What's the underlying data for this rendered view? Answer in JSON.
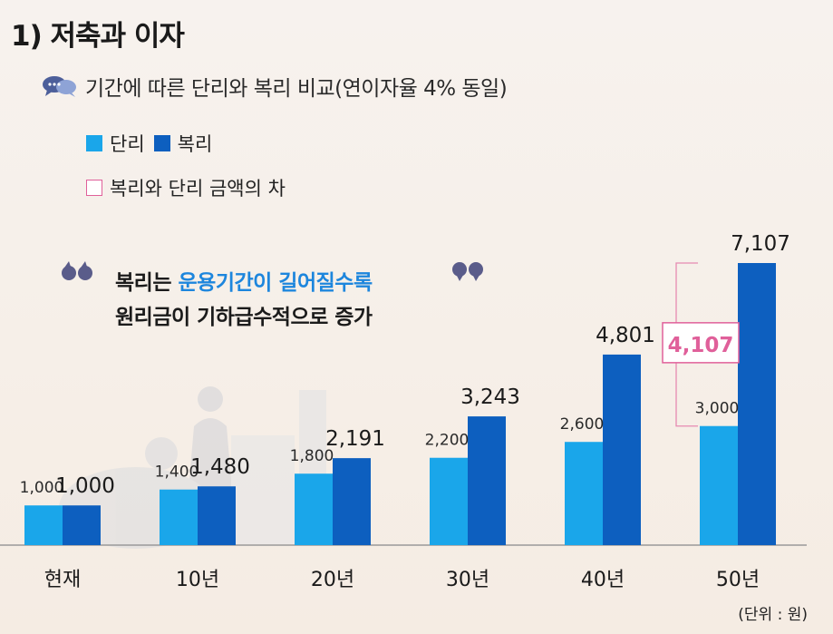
{
  "title": "1) 저축과 이자",
  "subtitle": "기간에 따른 단리와 복리 비교(연이자율 4% 동일)",
  "legend": {
    "simple": "단리",
    "compound": "복리",
    "difference": "복리와 단리 금액의 차"
  },
  "quote": {
    "line1_part1": "복리는",
    "line1_accent": "운용기간이 길어질수록",
    "line2": "원리금이 기하급수적으로 증가"
  },
  "footnote": "(단위 : 원)",
  "colors": {
    "simple": "#1aa6ea",
    "compound": "#0d5fbf",
    "difference": "#e0609a"
  },
  "chart_data": {
    "type": "bar",
    "categories": [
      "현재",
      "10년",
      "20년",
      "30년",
      "40년",
      "50년"
    ],
    "series": [
      {
        "name": "단리",
        "values": [
          1000,
          1400,
          1800,
          2200,
          2600,
          3000
        ],
        "labels": [
          "1,000",
          "1,400",
          "1,800",
          "2,200",
          "2,600",
          "3,000"
        ]
      },
      {
        "name": "복리",
        "values": [
          1000,
          1480,
          2191,
          3243,
          4801,
          7107
        ],
        "labels": [
          "1,000",
          "1,480",
          "2,191",
          "3,243",
          "4,801",
          "7,107"
        ]
      }
    ],
    "annotation": {
      "category": "50년",
      "value": 4107,
      "label": "4,107"
    },
    "ylim": [
      0,
      7500
    ],
    "grid": false
  }
}
